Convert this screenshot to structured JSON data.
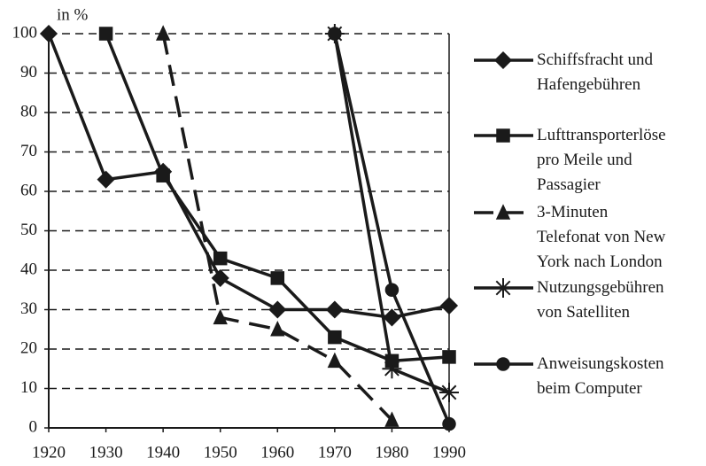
{
  "chart_data": {
    "type": "line",
    "y_label": "in %",
    "xlim": [
      1920,
      1990
    ],
    "xticks": [
      1920,
      1930,
      1940,
      1950,
      1960,
      1970,
      1980,
      1990
    ],
    "ylim": [
      0,
      100
    ],
    "yticks": [
      0,
      10,
      20,
      30,
      40,
      50,
      60,
      70,
      80,
      90,
      100
    ],
    "grid": true,
    "legend": "right",
    "series": [
      {
        "name": "Schiffsfracht und Hafengebühren",
        "color": "#1a1a1a",
        "marker": "diamond",
        "line_style": "solid",
        "x": [
          1920,
          1930,
          1940,
          1950,
          1960,
          1970,
          1980,
          1990
        ],
        "values": [
          100,
          63,
          65,
          38,
          30,
          30,
          28,
          31
        ]
      },
      {
        "name": "Lufttransporterlöse pro Meile und Passagier",
        "color": "#1a1a1a",
        "marker": "square",
        "line_style": "solid",
        "x": [
          1930,
          1940,
          1950,
          1960,
          1970,
          1980,
          1990
        ],
        "values": [
          100,
          64,
          43,
          38,
          23,
          17,
          18
        ]
      },
      {
        "name": "3-Minuten Telefonat von New York nach London",
        "color": "#1a1a1a",
        "marker": "triangle",
        "line_style": "dashed",
        "x": [
          1940,
          1950,
          1960,
          1970,
          1980
        ],
        "values": [
          100,
          28,
          25,
          17,
          2
        ]
      },
      {
        "name": "Nutzungsgebühren von Satelliten",
        "color": "#1a1a1a",
        "marker": "asterisk",
        "line_style": "solid",
        "x": [
          1970,
          1980,
          1990
        ],
        "values": [
          100,
          15,
          9
        ]
      },
      {
        "name": "Anweisungskosten beim Computer",
        "color": "#1a1a1a",
        "marker": "circle",
        "line_style": "solid",
        "x": [
          1970,
          1980,
          1990
        ],
        "values": [
          100,
          35,
          1
        ]
      }
    ]
  }
}
